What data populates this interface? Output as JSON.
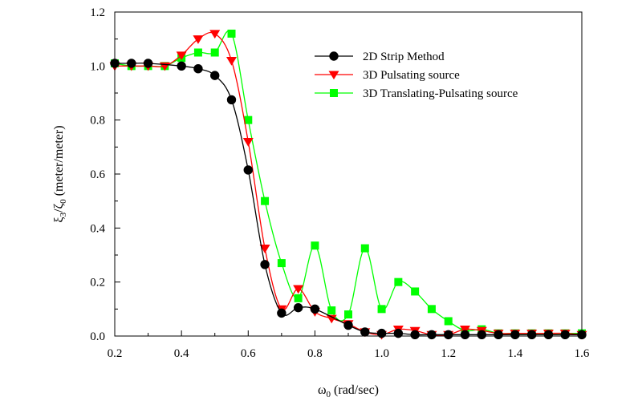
{
  "chart_data": {
    "type": "line",
    "title": "",
    "xlabel_main": "ω",
    "xlabel_sub": "0",
    "xlabel_rest": " (rad/sec)",
    "ylabel_p1": "ξ",
    "ylabel_sub1": "3",
    "ylabel_p2": "/ζ",
    "ylabel_sub2": "0",
    "ylabel_rest": " (meter/meter)",
    "xlim": [
      0.2,
      1.6
    ],
    "ylim": [
      0.0,
      1.2
    ],
    "xticks": [
      "0.2",
      "0.4",
      "0.6",
      "0.8",
      "1.0",
      "1.2",
      "1.4",
      "1.6"
    ],
    "yticks": [
      "0.0",
      "0.2",
      "0.4",
      "0.6",
      "0.8",
      "1.0",
      "1.2"
    ],
    "legend_position": "top-right",
    "series": [
      {
        "name": "2D Strip Method",
        "color": "#000000",
        "marker": "circle",
        "x": [
          0.2,
          0.25,
          0.3,
          0.4,
          0.45,
          0.5,
          0.55,
          0.6,
          0.65,
          0.7,
          0.75,
          0.8,
          0.9,
          0.95,
          1.0,
          1.05,
          1.1,
          1.15,
          1.2,
          1.25,
          1.3,
          1.35,
          1.4,
          1.45,
          1.5,
          1.55,
          1.6
        ],
        "y": [
          1.01,
          1.01,
          1.01,
          1.0,
          0.99,
          0.965,
          0.875,
          0.615,
          0.265,
          0.085,
          0.105,
          0.1,
          0.04,
          0.015,
          0.01,
          0.01,
          0.005,
          0.005,
          0.005,
          0.005,
          0.005,
          0.005,
          0.005,
          0.005,
          0.005,
          0.005,
          0.005
        ]
      },
      {
        "name": "3D Pulsating source",
        "color": "#ff0000",
        "marker": "triangle-down",
        "x": [
          0.2,
          0.25,
          0.3,
          0.35,
          0.4,
          0.45,
          0.5,
          0.55,
          0.6,
          0.65,
          0.7,
          0.75,
          0.8,
          0.85,
          0.9,
          0.95,
          1.0,
          1.05,
          1.1,
          1.15,
          1.2,
          1.25,
          1.3,
          1.35,
          1.4,
          1.45,
          1.5,
          1.55,
          1.6
        ],
        "y": [
          1.0,
          1.0,
          1.0,
          1.0,
          1.04,
          1.1,
          1.12,
          1.02,
          0.72,
          0.325,
          0.1,
          0.175,
          0.09,
          0.065,
          0.045,
          0.015,
          0.005,
          0.025,
          0.02,
          0.005,
          0.005,
          0.025,
          0.02,
          0.01,
          0.01,
          0.01,
          0.01,
          0.01,
          0.005
        ]
      },
      {
        "name": "3D Translating-Pulsating source",
        "color": "#00ff00",
        "marker": "square",
        "x": [
          0.2,
          0.25,
          0.3,
          0.35,
          0.4,
          0.45,
          0.5,
          0.55,
          0.6,
          0.65,
          0.7,
          0.75,
          0.8,
          0.85,
          0.9,
          0.95,
          1.0,
          1.05,
          1.1,
          1.15,
          1.2,
          1.25,
          1.3,
          1.35,
          1.4,
          1.45,
          1.5,
          1.55,
          1.6
        ],
        "y": [
          1.01,
          1.0,
          1.0,
          1.0,
          1.03,
          1.05,
          1.05,
          1.12,
          0.8,
          0.5,
          0.27,
          0.14,
          0.335,
          0.095,
          0.08,
          0.325,
          0.1,
          0.2,
          0.165,
          0.1,
          0.055,
          0.02,
          0.025,
          0.01,
          0.01,
          0.01,
          0.01,
          0.01,
          0.01
        ]
      }
    ]
  }
}
